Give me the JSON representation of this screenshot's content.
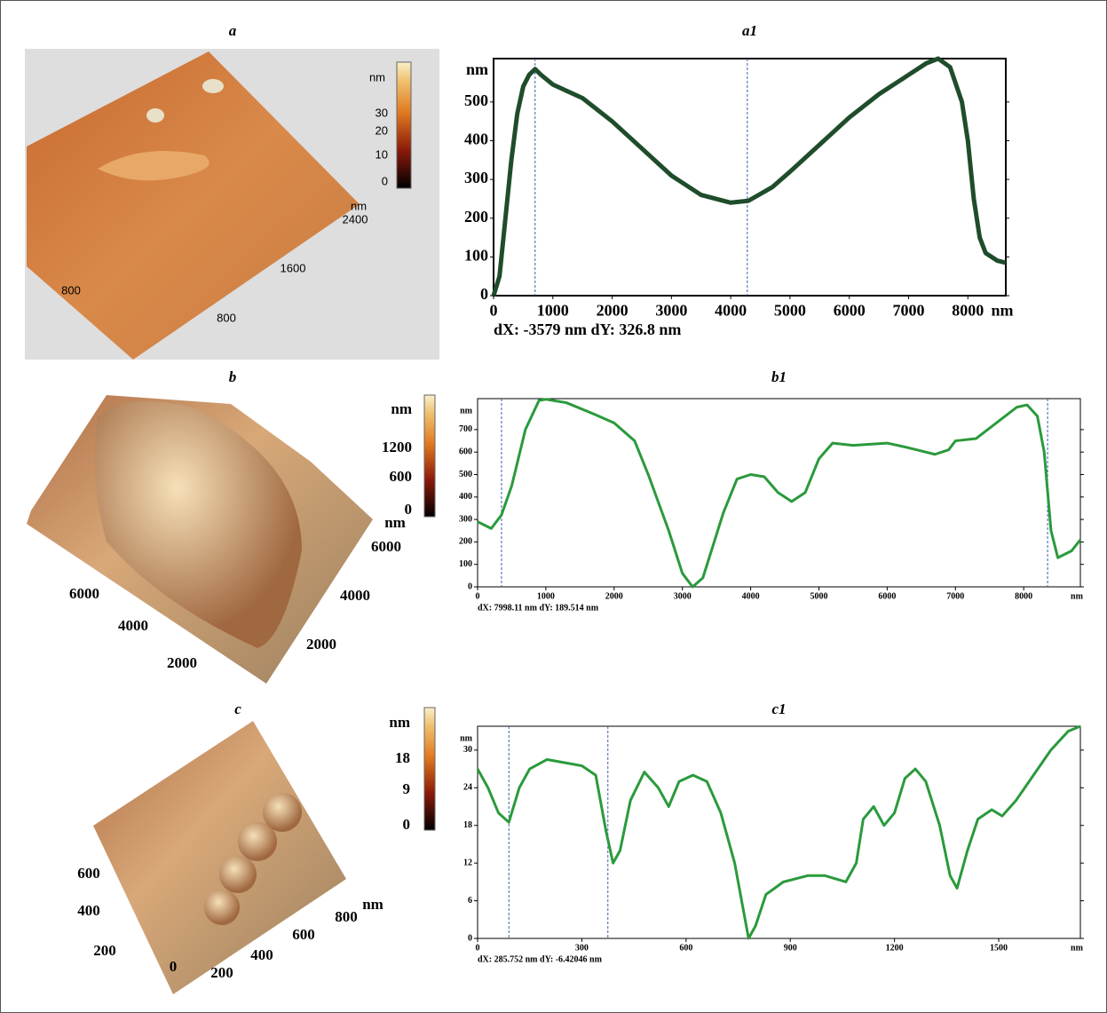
{
  "images": [
    {
      "title": "a",
      "colorbar_unit": "nm",
      "colorbar_ticks": [
        30,
        20,
        10,
        0
      ],
      "axis_unit": "nm",
      "axis_labels": [
        2400,
        1600,
        800,
        800
      ]
    },
    {
      "title": "b",
      "colorbar_unit": "nm",
      "colorbar_ticks": [
        1200,
        600,
        0
      ],
      "axis_unit": "nm",
      "axis_labels": [
        6000,
        4000,
        2000,
        6000,
        4000,
        2000
      ]
    },
    {
      "title": "c",
      "colorbar_unit": "nm",
      "colorbar_ticks": [
        18,
        9,
        0
      ],
      "axis_unit": "nm",
      "axis_labels": [
        800,
        600,
        400,
        200,
        0,
        200,
        400,
        600
      ]
    }
  ],
  "chart_data": [
    {
      "type": "line",
      "title": "a1",
      "ylabel": "nm",
      "xlabel": "nm",
      "footer": "dX: -3579 nm   dY: 326.8 nm",
      "color": "#1f4d2b",
      "x": [
        0,
        100,
        200,
        300,
        400,
        500,
        600,
        700,
        800,
        1000,
        1500,
        2000,
        2500,
        3000,
        3500,
        4000,
        4300,
        4700,
        5000,
        5500,
        6000,
        6500,
        7000,
        7300,
        7500,
        7700,
        7900,
        8000,
        8100,
        8200,
        8300,
        8500,
        8640
      ],
      "values": [
        0,
        50,
        200,
        350,
        470,
        540,
        570,
        585,
        570,
        545,
        510,
        450,
        380,
        310,
        260,
        240,
        245,
        280,
        320,
        390,
        460,
        520,
        570,
        600,
        612,
        590,
        500,
        400,
        250,
        150,
        110,
        90,
        85
      ],
      "cursors": [
        700,
        4280
      ],
      "xlim": [
        0,
        8640
      ],
      "ylim": [
        0,
        612
      ],
      "xticks": [
        0,
        1000,
        2000,
        3000,
        4000,
        5000,
        6000,
        7000,
        8000
      ],
      "yticks": [
        0,
        100,
        200,
        300,
        400,
        500
      ]
    },
    {
      "type": "line",
      "title": "b1",
      "ylabel": "nm",
      "xlabel": "nm",
      "footer": "dX: 7998.11 nm dY: 189.514 nm",
      "color": "#2a9a3c",
      "x": [
        0,
        200,
        350,
        500,
        700,
        900,
        1000,
        1300,
        1700,
        2000,
        2300,
        2500,
        2800,
        3000,
        3150,
        3300,
        3600,
        3800,
        4000,
        4200,
        4400,
        4600,
        4800,
        5000,
        5200,
        5500,
        6000,
        6300,
        6700,
        6900,
        7000,
        7300,
        7600,
        7900,
        8050,
        8200,
        8300,
        8400,
        8500,
        8700,
        8830
      ],
      "values": [
        290,
        260,
        320,
        450,
        700,
        830,
        835,
        820,
        770,
        730,
        650,
        500,
        250,
        60,
        0,
        40,
        330,
        480,
        500,
        490,
        420,
        380,
        420,
        570,
        640,
        630,
        640,
        620,
        590,
        610,
        650,
        660,
        730,
        800,
        810,
        760,
        600,
        250,
        130,
        160,
        210
      ],
      "cursors": [
        350,
        8350
      ],
      "xlim": [
        0,
        8830
      ],
      "ylim": [
        0,
        838
      ],
      "xticks": [
        0,
        1000,
        2000,
        3000,
        4000,
        5000,
        6000,
        7000,
        8000
      ],
      "yticks": [
        0,
        100,
        200,
        300,
        400,
        500,
        600,
        700
      ]
    },
    {
      "type": "line",
      "title": "c1",
      "ylabel": "nm",
      "xlabel": "nm",
      "footer": "dX: 285.752 nm dY: -6.42046 nm",
      "color": "#2a9a3c",
      "x": [
        0,
        30,
        60,
        90,
        120,
        150,
        200,
        250,
        300,
        340,
        370,
        390,
        410,
        440,
        480,
        520,
        550,
        580,
        620,
        660,
        700,
        740,
        770,
        780,
        800,
        830,
        880,
        950,
        1000,
        1060,
        1090,
        1110,
        1140,
        1170,
        1200,
        1230,
        1260,
        1290,
        1330,
        1360,
        1380,
        1410,
        1440,
        1480,
        1510,
        1550,
        1600,
        1650,
        1700,
        1735
      ],
      "values": [
        27,
        24,
        20,
        18.5,
        24,
        27,
        28.5,
        28,
        27.5,
        26,
        17,
        12,
        14,
        22,
        26.5,
        24,
        21,
        25,
        26,
        25,
        20,
        12,
        3,
        0,
        2,
        7,
        9,
        10,
        10,
        9,
        12,
        19,
        21,
        18,
        20,
        25.5,
        27,
        25,
        18,
        10,
        8,
        14,
        19,
        20.5,
        19.5,
        22,
        26,
        30,
        33,
        33.8
      ],
      "cursors": [
        90,
        375
      ],
      "xlim": [
        0,
        1735
      ],
      "ylim": [
        0,
        33.8
      ],
      "xticks": [
        0,
        300,
        600,
        900,
        1200,
        1500
      ],
      "yticks": [
        0,
        6,
        12,
        18,
        24,
        30
      ]
    }
  ]
}
